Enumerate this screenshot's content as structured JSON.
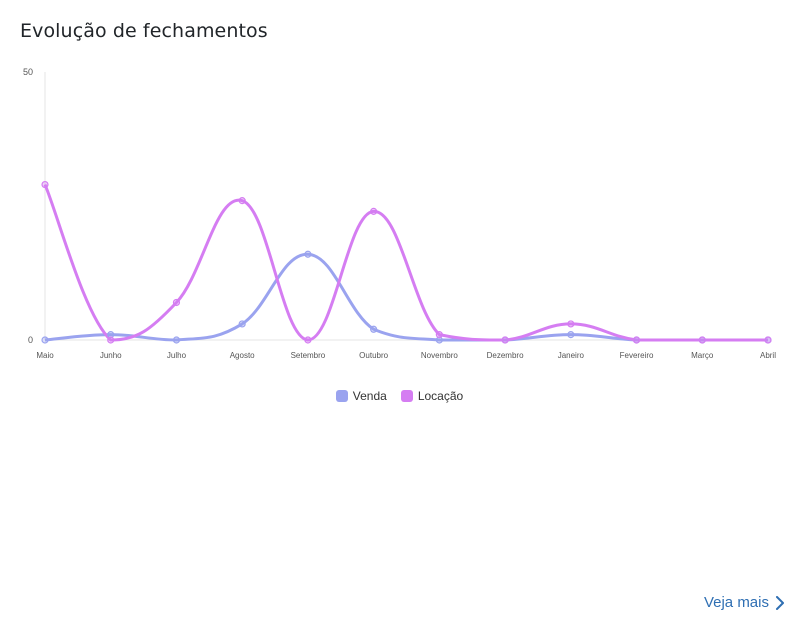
{
  "card": {
    "title": "Evolução de fechamentos",
    "more_label": "Veja mais"
  },
  "colors": {
    "venda": "#9aa3ef",
    "locacao": "#d57df2"
  },
  "chart_data": {
    "type": "line",
    "categories": [
      "Maio",
      "Junho",
      "Julho",
      "Agosto",
      "Setembro",
      "Outubro",
      "Novembro",
      "Dezembro",
      "Janeiro",
      "Fevereiro",
      "Março",
      "Abril"
    ],
    "ylim": [
      0,
      50
    ],
    "y_ticks": [
      0,
      50
    ],
    "series": [
      {
        "name": "Venda",
        "values": [
          0,
          1,
          0,
          3,
          16,
          2,
          0,
          0,
          1,
          0,
          0,
          0
        ]
      },
      {
        "name": "Locação",
        "values": [
          29,
          0,
          7,
          26,
          0,
          24,
          1,
          0,
          3,
          0,
          0,
          0
        ]
      }
    ],
    "legend": "bottom",
    "smooth": true
  },
  "icons": {
    "more": "chevron-right-icon"
  }
}
